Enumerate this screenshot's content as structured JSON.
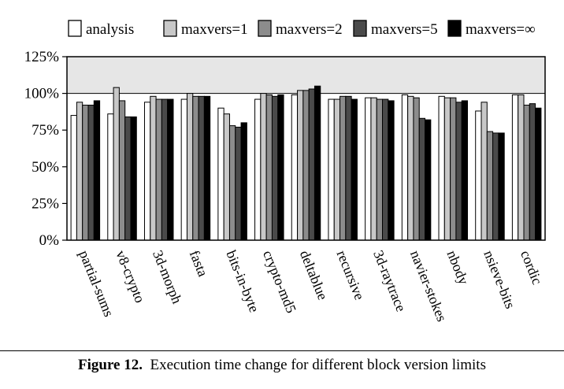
{
  "chart_data": {
    "type": "bar",
    "categories": [
      "partial-sums",
      "v8-crypto",
      "3d-morph",
      "fasta",
      "bits-in-byte",
      "crypto-md5",
      "deltablue",
      "recursive",
      "3d-raytrace",
      "navier-stokes",
      "nbody",
      "nsieve-bits",
      "cordic"
    ],
    "series": [
      {
        "name": "analysis",
        "color": "#ffffff",
        "values": [
          85,
          86,
          94,
          96,
          90,
          96,
          99,
          96,
          97,
          99,
          98,
          88,
          99
        ]
      },
      {
        "name": "maxvers=1",
        "color": "#c8c8c8",
        "values": [
          94,
          104,
          98,
          100,
          86,
          100,
          102,
          96,
          97,
          98,
          97,
          94,
          99
        ]
      },
      {
        "name": "maxvers=2",
        "color": "#8c8c8c",
        "values": [
          92,
          95,
          96,
          98,
          78,
          99,
          102,
          98,
          96,
          97,
          97,
          74,
          92
        ]
      },
      {
        "name": "maxvers=5",
        "color": "#4a4a4a",
        "values": [
          92,
          84,
          96,
          98,
          77,
          98,
          103,
          98,
          96,
          83,
          94,
          73,
          93
        ]
      },
      {
        "name": "maxvers=∞",
        "color": "#000000",
        "values": [
          95,
          84,
          96,
          98,
          80,
          99,
          105,
          96,
          95,
          82,
          95,
          73,
          90
        ]
      }
    ],
    "yticks": [
      "0%",
      "25%",
      "50%",
      "75%",
      "100%",
      "125%"
    ],
    "ylim": [
      0,
      125
    ],
    "reference_line": 100,
    "legend_position": "top"
  },
  "caption": {
    "label": "Figure 12.",
    "text": "Execution time change for different block version limits"
  }
}
